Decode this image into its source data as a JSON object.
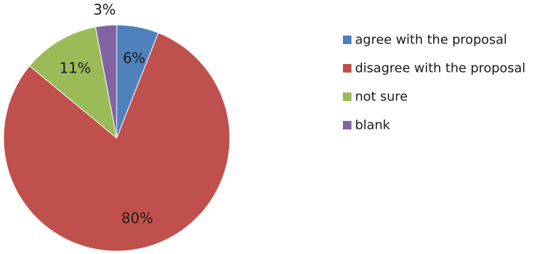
{
  "chart_data": {
    "type": "pie",
    "title": "",
    "slices": [
      {
        "label": "agree with the proposal",
        "value": 6,
        "display": "6%",
        "color": "#4F81BD"
      },
      {
        "label": "disagree with the proposal",
        "value": 80,
        "display": "80%",
        "color": "#C0504D"
      },
      {
        "label": "not sure",
        "value": 11,
        "display": "11%",
        "color": "#9BBB59"
      },
      {
        "label": "blank",
        "value": 3,
        "display": "3%",
        "color": "#8064A2"
      }
    ],
    "start_angle": "12 o'clock",
    "direction": "clockwise",
    "legend_position": "right"
  }
}
